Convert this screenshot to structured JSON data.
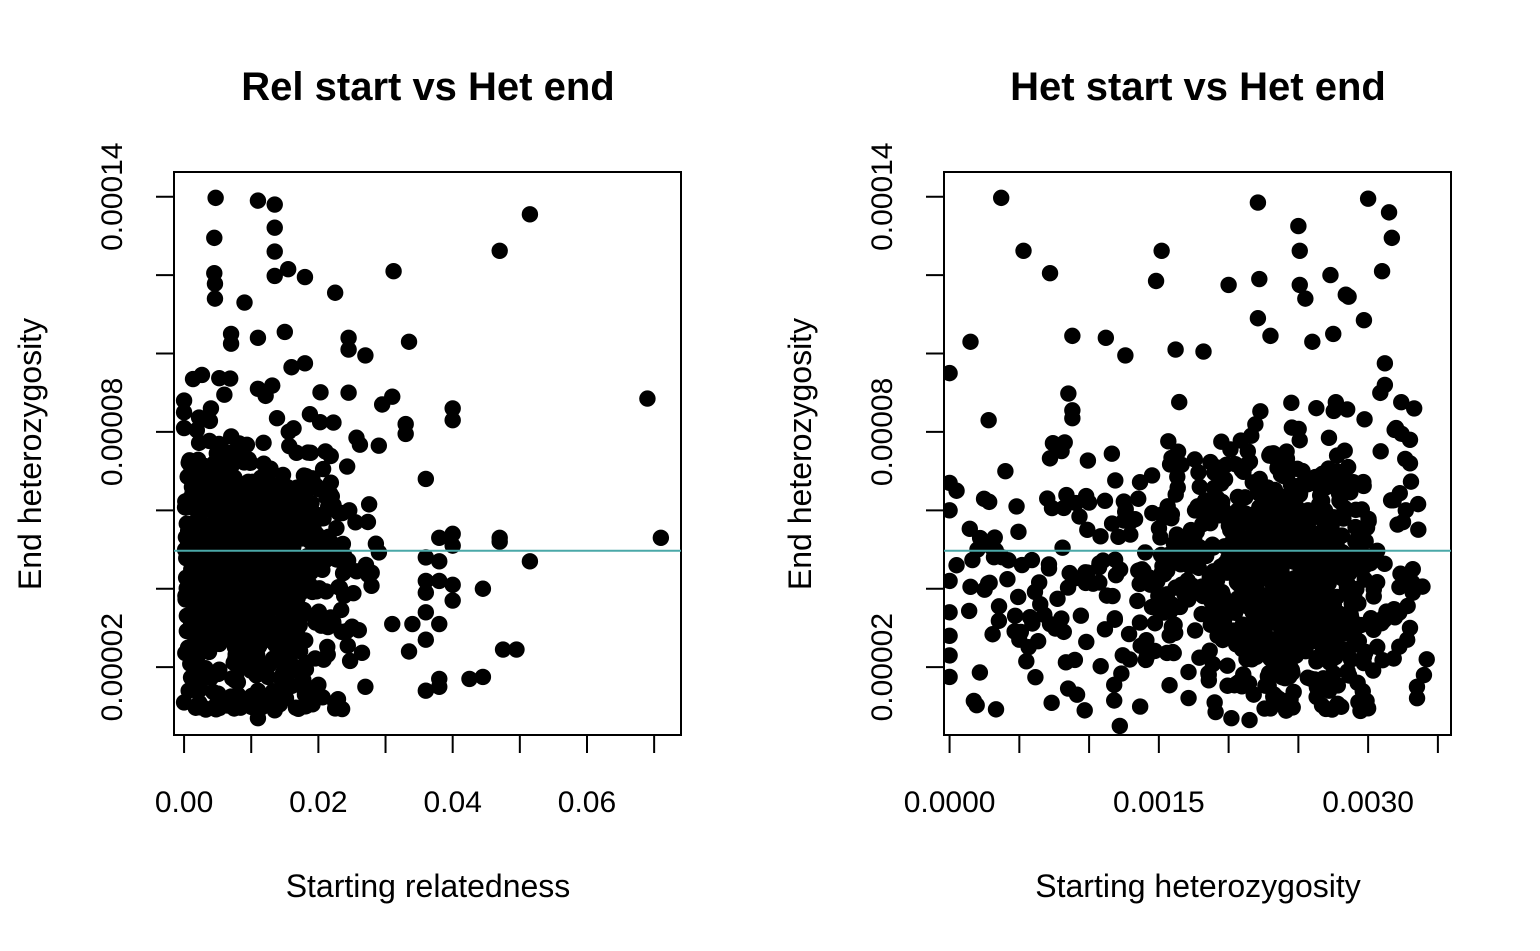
{
  "colors": {
    "points": "#000000",
    "refline": "#4aa8a8",
    "frame": "#000000",
    "background": "#ffffff"
  },
  "chart_data": [
    {
      "type": "scatter",
      "title": "Rel start vs Het end",
      "xlabel": "Starting relatedness",
      "ylabel": "End heterozygosity",
      "xlim": [
        -0.0015,
        0.074
      ],
      "ylim": [
        2.7e-06,
        0.0001463
      ],
      "xticks": [
        0.0,
        0.01,
        0.02,
        0.03,
        0.04,
        0.05,
        0.06,
        0.07
      ],
      "xtick_labels": [
        "0.00",
        "",
        "0.02",
        "",
        "0.04",
        "",
        "0.06",
        ""
      ],
      "yticks": [
        2e-05,
        4e-05,
        6e-05,
        8e-05,
        0.0001,
        0.00012,
        0.00014
      ],
      "ytick_labels": [
        "0.00002",
        "",
        "",
        "0.00008",
        "",
        "",
        "0.00014"
      ],
      "hline": 4.97e-05,
      "grid": false,
      "approx_point_count": 1000,
      "points": [
        [
          0.0,
          1.1e-05
        ],
        [
          0.0047,
          0.0001397
        ],
        [
          0.0045,
          0.0001295
        ],
        [
          0.0045,
          0.0001205
        ],
        [
          0.0046,
          0.0001178
        ],
        [
          0.0046,
          0.000114
        ],
        [
          0.011,
          0.000139
        ],
        [
          0.0135,
          0.000138
        ],
        [
          0.0135,
          0.0001321
        ],
        [
          0.0135,
          0.000126
        ],
        [
          0.0135,
          0.0001198
        ],
        [
          0.0155,
          0.0001215
        ],
        [
          0.018,
          0.0001195
        ],
        [
          0.009,
          0.000113
        ],
        [
          0.0225,
          0.0001155
        ],
        [
          0.0312,
          0.000121
        ],
        [
          0.047,
          0.0001262
        ],
        [
          0.0515,
          0.0001355
        ],
        [
          0.015,
          0.0001055
        ],
        [
          0.007,
          0.000105
        ],
        [
          0.007,
          0.0001025
        ],
        [
          0.011,
          0.000104
        ],
        [
          0.0245,
          0.000104
        ],
        [
          0.0245,
          0.000101
        ],
        [
          0.0335,
          0.000103
        ],
        [
          0.027,
          9.95e-05
        ],
        [
          0.018,
          9.75e-05
        ],
        [
          0.016,
          9.65e-05
        ],
        [
          0.069,
          8.85e-05
        ],
        [
          0.071,
          5.3e-05
        ],
        [
          0.0,
          8.8e-05
        ],
        [
          0.0,
          8.5e-05
        ],
        [
          0.0,
          8.1e-05
        ],
        [
          0.004,
          8.6e-05
        ],
        [
          0.006,
          8.95e-05
        ],
        [
          0.011,
          9.1e-05
        ],
        [
          0.0245,
          9e-05
        ],
        [
          0.0295,
          8.7e-05
        ],
        [
          0.031,
          8.9e-05
        ],
        [
          0.04,
          8.6e-05
        ],
        [
          0.04,
          8.3e-05
        ],
        [
          0.033,
          8.2e-05
        ],
        [
          0.033,
          7.95e-05
        ],
        [
          0.029,
          7.65e-05
        ],
        [
          0.036,
          6.8e-05
        ],
        [
          0.038,
          5.3e-05
        ],
        [
          0.04,
          5.4e-05
        ],
        [
          0.04,
          5.1e-05
        ],
        [
          0.036,
          4.8e-05
        ],
        [
          0.038,
          4.7e-05
        ],
        [
          0.047,
          5.3e-05
        ],
        [
          0.047,
          5.2e-05
        ],
        [
          0.0515,
          4.7e-05
        ],
        [
          0.036,
          4.2e-05
        ],
        [
          0.036,
          3.9e-05
        ],
        [
          0.038,
          4.2e-05
        ],
        [
          0.04,
          4.1e-05
        ],
        [
          0.0445,
          4e-05
        ],
        [
          0.04,
          3.7e-05
        ],
        [
          0.036,
          3.4e-05
        ],
        [
          0.038,
          3.1e-05
        ],
        [
          0.034,
          3.1e-05
        ],
        [
          0.031,
          3.1e-05
        ],
        [
          0.036,
          2.7e-05
        ],
        [
          0.0335,
          2.4e-05
        ],
        [
          0.0475,
          2.45e-05
        ],
        [
          0.0495,
          2.45e-05
        ],
        [
          0.038,
          1.7e-05
        ],
        [
          0.036,
          1.4e-05
        ],
        [
          0.038,
          1.5e-05
        ],
        [
          0.0425,
          1.7e-05
        ],
        [
          0.0445,
          1.75e-05
        ],
        [
          0.007,
          1.1e-05
        ],
        [
          0.007,
          1.25e-05
        ],
        [
          0.011,
          1.4e-05
        ],
        [
          0.011,
          7e-06
        ],
        [
          0.0135,
          9e-06
        ],
        [
          0.018,
          1e-05
        ],
        [
          0.018,
          1.3e-05
        ],
        [
          0.0225,
          1.1e-05
        ],
        [
          0.027,
          1.5e-05
        ],
        [
          0.02,
          1.55e-05
        ],
        [
          0.002,
          1.4e-05
        ]
      ]
    },
    {
      "type": "scatter",
      "title": "Het start vs Het end",
      "xlabel": "Starting heterozygosity",
      "ylabel": "End heterozygosity",
      "xlim": [
        -4e-05,
        0.003594
      ],
      "ylim": [
        2.7e-06,
        0.0001463
      ],
      "xticks": [
        0.0,
        0.0005,
        0.001,
        0.0015,
        0.002,
        0.0025,
        0.003,
        0.0035
      ],
      "xtick_labels": [
        "0.0000",
        "",
        "",
        "0.0015",
        "",
        "",
        "0.0030",
        ""
      ],
      "yticks": [
        2e-05,
        4e-05,
        6e-05,
        8e-05,
        0.0001,
        0.00012,
        0.00014
      ],
      "ytick_labels": [
        "0.00002",
        "",
        "",
        "0.00008",
        "",
        "",
        "0.00014"
      ],
      "hline": 4.97e-05,
      "grid": false,
      "approx_point_count": 1000,
      "points": [
        [
          0.00037,
          0.0001397
        ],
        [
          0.003,
          0.0001395
        ],
        [
          0.00221,
          0.0001385
        ],
        [
          0.00315,
          0.000136
        ],
        [
          0.0025,
          0.0001325
        ],
        [
          0.00317,
          0.0001295
        ],
        [
          0.00053,
          0.0001262
        ],
        [
          0.00152,
          0.0001262
        ],
        [
          0.00251,
          0.0001262
        ],
        [
          0.00072,
          0.0001205
        ],
        [
          0.0031,
          0.000121
        ],
        [
          0.00148,
          0.0001185
        ],
        [
          0.00222,
          0.000119
        ],
        [
          0.00273,
          0.00012
        ],
        [
          0.002,
          0.0001175
        ],
        [
          0.00251,
          0.0001175
        ],
        [
          0.00255,
          0.000114
        ],
        [
          0.00284,
          0.000115
        ],
        [
          0.00286,
          0.0001145
        ],
        [
          0.00221,
          0.000109
        ],
        [
          0.00297,
          0.0001085
        ],
        [
          0.00015,
          0.000103
        ],
        [
          0.00088,
          0.0001045
        ],
        [
          0.00112,
          0.000104
        ],
        [
          0.0023,
          0.0001045
        ],
        [
          0.0026,
          0.000103
        ],
        [
          0.00275,
          0.000105
        ],
        [
          0.0,
          9.5e-05
        ],
        [
          0.00126,
          9.95e-05
        ],
        [
          0.00162,
          0.000101
        ],
        [
          0.00182,
          0.0001005
        ],
        [
          0.00312,
          9.75e-05
        ],
        [
          0.0,
          6.7e-05
        ],
        [
          5e-05,
          6.5e-05
        ],
        [
          0.00028,
          8.3e-05
        ],
        [
          0.00088,
          8.55e-05
        ],
        [
          0.00088,
          8.35e-05
        ],
        [
          0.0,
          6e-05
        ],
        [
          0.0002,
          5e-05
        ],
        [
          5e-05,
          4.6e-05
        ],
        [
          0.00015,
          4.05e-05
        ],
        [
          0.0,
          4.2e-05
        ],
        [
          0.0,
          3.4e-05
        ],
        [
          0.0,
          2.8e-05
        ],
        [
          0.0,
          2.3e-05
        ],
        [
          0.0,
          1.75e-05
        ],
        [
          0.0005,
          2.7e-05
        ],
        [
          0.00055,
          2.15e-05
        ],
        [
          0.00072,
          3.1e-05
        ],
        [
          0.00118,
          1.55e-05
        ],
        [
          0.00118,
          1.15e-05
        ],
        [
          0.00122,
          5e-06
        ],
        [
          0.0019,
          1.1e-05
        ],
        [
          0.00202,
          7e-06
        ],
        [
          0.00215,
          6.5e-06
        ],
        [
          0.00218,
          1.3e-05
        ],
        [
          0.00232,
          1.25e-05
        ],
        [
          0.0024,
          1e-05
        ],
        [
          0.00272,
          1.4e-05
        ],
        [
          0.003,
          9.5e-06
        ],
        [
          0.00335,
          1.5e-05
        ],
        [
          0.0034,
          1.8e-05
        ],
        [
          0.00342,
          2.2e-05
        ],
        [
          0.00328,
          2.7e-05
        ],
        [
          0.0033,
          3e-05
        ],
        [
          0.00332,
          3.9e-05
        ],
        [
          0.00332,
          4.5e-05
        ],
        [
          0.00325,
          5.7e-05
        ],
        [
          0.00327,
          6e-05
        ],
        [
          0.0033,
          7.2e-05
        ],
        [
          0.0033,
          7.8e-05
        ],
        [
          0.00333,
          8.6e-05
        ],
        [
          0.0032,
          8.1e-05
        ],
        [
          0.00312,
          9.2e-05
        ],
        [
          0.0029,
          3.8e-05
        ],
        [
          0.0004,
          7e-05
        ],
        [
          0.00048,
          6.1e-05
        ],
        [
          0.0007,
          6.3e-05
        ]
      ]
    }
  ]
}
